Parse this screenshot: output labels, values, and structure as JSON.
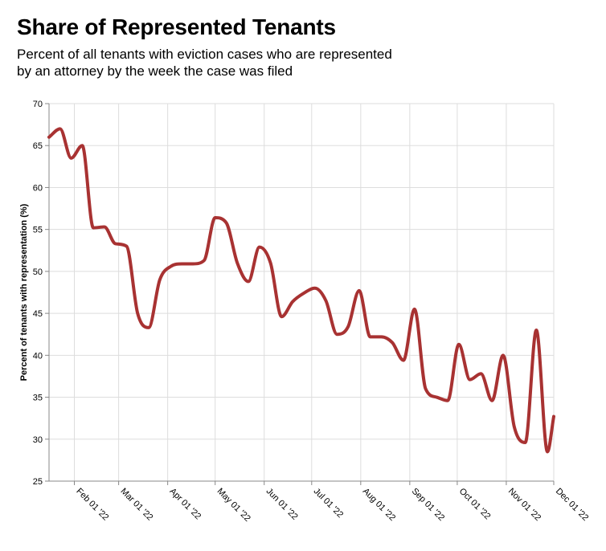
{
  "title": "Share of Represented Tenants",
  "subtitle_line1": "Percent of all tenants with eviction cases who are represented",
  "subtitle_line2": "by an attorney by the week the case was filed",
  "chart_data": {
    "type": "line",
    "title": "Share of Represented Tenants",
    "subtitle": "Percent of all tenants with eviction cases who are represented by an attorney by the week the case was filed",
    "xlabel": "",
    "ylabel": "Percent of tenants with representation (%)",
    "ylim": [
      25,
      70
    ],
    "xlim": [
      "2022-01-16",
      "2022-12-01"
    ],
    "y_ticks": [
      25,
      30,
      35,
      40,
      45,
      50,
      55,
      60,
      65,
      70
    ],
    "x_ticks": [
      {
        "date": "2022-02-01",
        "label": "Feb 01 '22"
      },
      {
        "date": "2022-03-01",
        "label": "Mar 01 '22"
      },
      {
        "date": "2022-04-01",
        "label": "Apr 01 '22"
      },
      {
        "date": "2022-05-01",
        "label": "May 01 '22"
      },
      {
        "date": "2022-06-01",
        "label": "Jun 01 '22"
      },
      {
        "date": "2022-07-01",
        "label": "Jul 01 '22"
      },
      {
        "date": "2022-08-01",
        "label": "Aug 01 '22"
      },
      {
        "date": "2022-09-01",
        "label": "Sep 01 '22"
      },
      {
        "date": "2022-10-01",
        "label": "Oct 01 '22"
      },
      {
        "date": "2022-11-01",
        "label": "Nov 01 '22"
      },
      {
        "date": "2022-12-01",
        "label": "Dec 01 '22"
      }
    ],
    "grid": true,
    "line_color": "#a83232",
    "series": [
      {
        "points": [
          {
            "x": "2022-01-16",
            "y": 66.0
          },
          {
            "x": "2022-01-23",
            "y": 67.0
          },
          {
            "x": "2022-01-30",
            "y": 63.5
          },
          {
            "x": "2022-02-06",
            "y": 65.0
          },
          {
            "x": "2022-02-13",
            "y": 55.2
          },
          {
            "x": "2022-02-20",
            "y": 55.3
          },
          {
            "x": "2022-02-27",
            "y": 53.3
          },
          {
            "x": "2022-03-06",
            "y": 53.0
          },
          {
            "x": "2022-03-13",
            "y": 45.0
          },
          {
            "x": "2022-03-20",
            "y": 43.3
          },
          {
            "x": "2022-03-27",
            "y": 49.0
          },
          {
            "x": "2022-04-03",
            "y": 50.6
          },
          {
            "x": "2022-04-10",
            "y": 50.9
          },
          {
            "x": "2022-04-17",
            "y": 50.9
          },
          {
            "x": "2022-04-24",
            "y": 51.3
          },
          {
            "x": "2022-05-01",
            "y": 56.4
          },
          {
            "x": "2022-05-08",
            "y": 55.8
          },
          {
            "x": "2022-05-15",
            "y": 51.0
          },
          {
            "x": "2022-05-22",
            "y": 48.8
          },
          {
            "x": "2022-05-29",
            "y": 52.9
          },
          {
            "x": "2022-06-05",
            "y": 51.0
          },
          {
            "x": "2022-06-12",
            "y": 44.6
          },
          {
            "x": "2022-06-19",
            "y": 46.4
          },
          {
            "x": "2022-06-26",
            "y": 47.4
          },
          {
            "x": "2022-07-03",
            "y": 48.0
          },
          {
            "x": "2022-07-10",
            "y": 46.5
          },
          {
            "x": "2022-07-17",
            "y": 42.5
          },
          {
            "x": "2022-07-24",
            "y": 43.4
          },
          {
            "x": "2022-07-31",
            "y": 47.7
          },
          {
            "x": "2022-08-07",
            "y": 42.2
          },
          {
            "x": "2022-08-14",
            "y": 42.2
          },
          {
            "x": "2022-08-21",
            "y": 41.5
          },
          {
            "x": "2022-08-28",
            "y": 39.4
          },
          {
            "x": "2022-09-04",
            "y": 45.5
          },
          {
            "x": "2022-09-11",
            "y": 36.0
          },
          {
            "x": "2022-09-18",
            "y": 35.0
          },
          {
            "x": "2022-09-25",
            "y": 34.6
          },
          {
            "x": "2022-10-02",
            "y": 41.3
          },
          {
            "x": "2022-10-09",
            "y": 37.1
          },
          {
            "x": "2022-10-16",
            "y": 37.8
          },
          {
            "x": "2022-10-23",
            "y": 34.6
          },
          {
            "x": "2022-10-30",
            "y": 40.0
          },
          {
            "x": "2022-11-06",
            "y": 31.5
          },
          {
            "x": "2022-11-13",
            "y": 29.6
          },
          {
            "x": "2022-11-20",
            "y": 43.0
          },
          {
            "x": "2022-11-27",
            "y": 28.5
          },
          {
            "x": "2022-12-01",
            "y": 32.7
          }
        ]
      }
    ]
  }
}
